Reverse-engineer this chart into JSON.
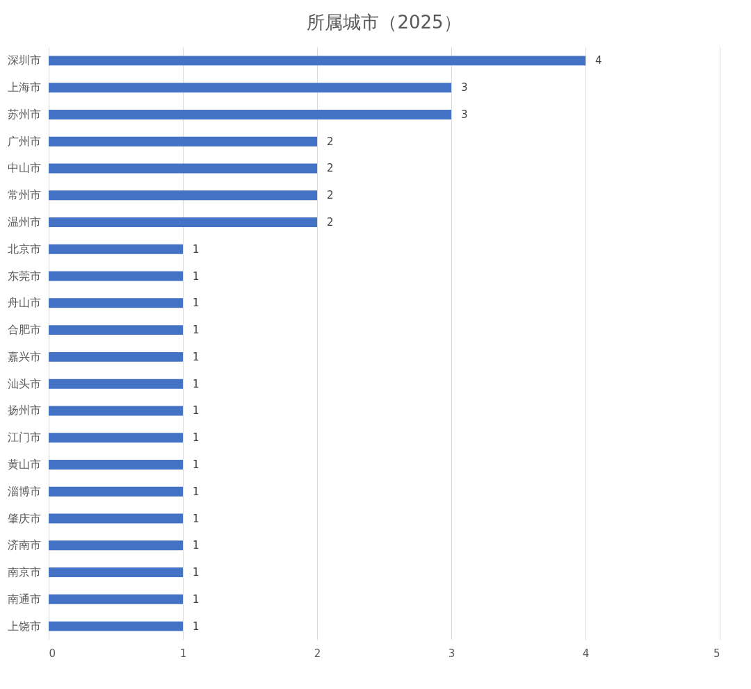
{
  "chart_data": {
    "type": "bar",
    "orientation": "horizontal",
    "title": "所属城市（2025）",
    "categories": [
      "深圳市",
      "上海市",
      "苏州市",
      "广州市",
      "中山市",
      "常州市",
      "温州市",
      "北京市",
      "东莞市",
      "舟山市",
      "合肥市",
      "嘉兴市",
      "汕头市",
      "扬州市",
      "江门市",
      "黄山市",
      "淄博市",
      "肇庆市",
      "济南市",
      "南京市",
      "南通市",
      "上饶市"
    ],
    "values": [
      4,
      3,
      3,
      2,
      2,
      2,
      2,
      1,
      1,
      1,
      1,
      1,
      1,
      1,
      1,
      1,
      1,
      1,
      1,
      1,
      1,
      1
    ],
    "color": "#4472c4",
    "xlim": [
      0,
      5
    ],
    "xticks": [
      0,
      1,
      2,
      3,
      4,
      5
    ],
    "grid": "x",
    "data_labels": true
  }
}
